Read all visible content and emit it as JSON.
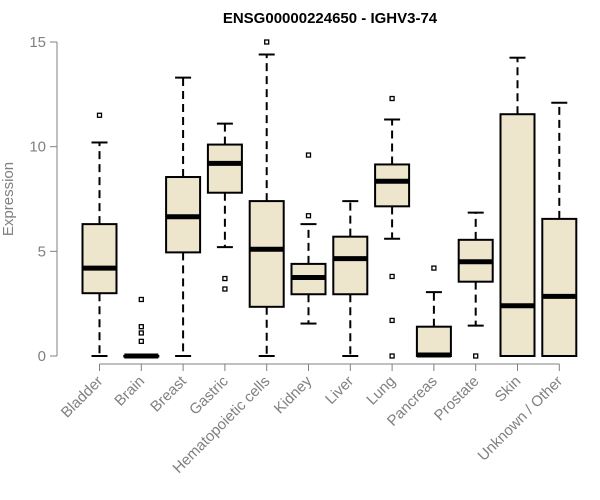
{
  "chart_data": {
    "type": "boxplot",
    "title": "ENSG00000224650 - IGHV3-74",
    "xlabel": "",
    "ylabel": "Expression",
    "ylim": [
      0,
      15
    ],
    "yticks": [
      0,
      5,
      10,
      15
    ],
    "box_fill": "#ede6cd",
    "box_stroke": "#000000",
    "axis_color": "#808080",
    "grid": false,
    "categories": [
      "Bladder",
      "Brain",
      "Breast",
      "Gastric",
      "Hematopoietic cells",
      "Kidney",
      "Liver",
      "Lung",
      "Pancreas",
      "Prostate",
      "Skin",
      "Unknown / Other"
    ],
    "boxes": [
      {
        "category": "Bladder",
        "whisker_low": 0.0,
        "q1": 3.0,
        "median": 4.2,
        "q3": 6.3,
        "whisker_high": 10.2,
        "outliers": [
          11.5
        ]
      },
      {
        "category": "Brain",
        "whisker_low": 0.0,
        "q1": 0.0,
        "median": 0.0,
        "q3": 0.0,
        "whisker_high": 0.0,
        "outliers": [
          0.7,
          1.1,
          1.4,
          2.7
        ]
      },
      {
        "category": "Breast",
        "whisker_low": 0.0,
        "q1": 4.95,
        "median": 6.65,
        "q3": 8.55,
        "whisker_high": 13.3,
        "outliers": []
      },
      {
        "category": "Gastric",
        "whisker_low": 5.2,
        "q1": 7.8,
        "median": 9.2,
        "q3": 10.1,
        "whisker_high": 11.1,
        "outliers": [
          3.2,
          3.7
        ]
      },
      {
        "category": "Hematopoietic cells",
        "whisker_low": 0.0,
        "q1": 2.35,
        "median": 5.1,
        "q3": 7.4,
        "whisker_high": 14.4,
        "outliers": [
          15.0
        ]
      },
      {
        "category": "Kidney",
        "whisker_low": 1.55,
        "q1": 2.95,
        "median": 3.75,
        "q3": 4.4,
        "whisker_high": 6.3,
        "outliers": [
          6.7,
          9.6
        ]
      },
      {
        "category": "Liver",
        "whisker_low": 0.0,
        "q1": 2.95,
        "median": 4.65,
        "q3": 5.7,
        "whisker_high": 7.4,
        "outliers": []
      },
      {
        "category": "Lung",
        "whisker_low": 5.6,
        "q1": 7.15,
        "median": 8.35,
        "q3": 9.15,
        "whisker_high": 11.3,
        "outliers": [
          12.3,
          3.8,
          1.7,
          0.0
        ]
      },
      {
        "category": "Pancreas",
        "whisker_low": 0.0,
        "q1": 0.0,
        "median": 0.05,
        "q3": 1.4,
        "whisker_high": 3.05,
        "outliers": [
          4.2
        ]
      },
      {
        "category": "Prostate",
        "whisker_low": 1.45,
        "q1": 3.55,
        "median": 4.5,
        "q3": 5.55,
        "whisker_high": 6.85,
        "outliers": [
          0.0
        ]
      },
      {
        "category": "Skin",
        "whisker_low": 0.0,
        "q1": 0.0,
        "median": 2.4,
        "q3": 11.55,
        "whisker_high": 14.25,
        "outliers": []
      },
      {
        "category": "Unknown / Other",
        "whisker_low": 0.0,
        "q1": 0.0,
        "median": 2.85,
        "q3": 6.55,
        "whisker_high": 12.1,
        "outliers": []
      }
    ]
  }
}
